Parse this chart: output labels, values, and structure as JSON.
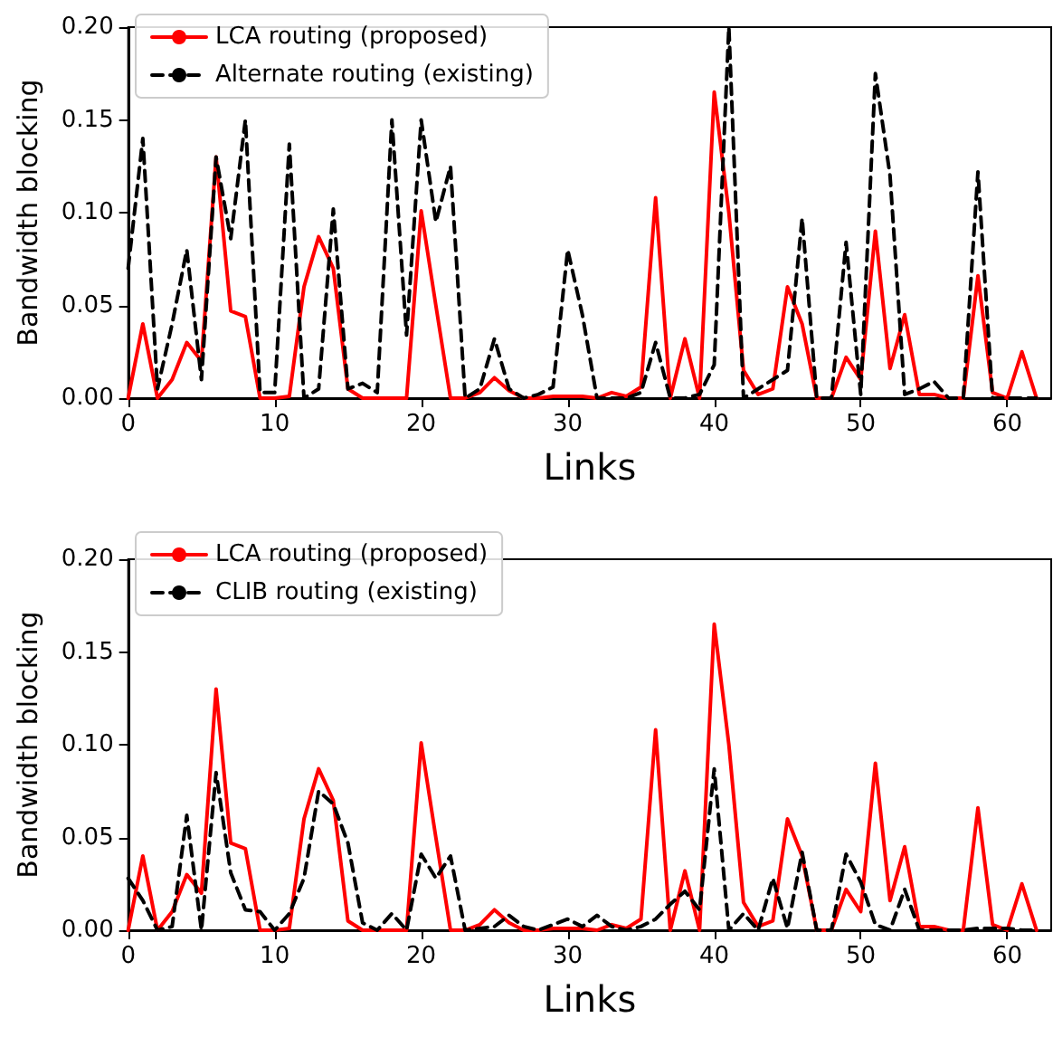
{
  "chart_data": [
    {
      "type": "line",
      "xlabel": "Links",
      "ylabel": "Bandwidth blocking",
      "legend": "top left",
      "marker": "none",
      "x": [
        0,
        1,
        2,
        3,
        4,
        5,
        6,
        7,
        8,
        9,
        10,
        11,
        12,
        13,
        14,
        15,
        16,
        17,
        18,
        19,
        20,
        21,
        22,
        23,
        24,
        25,
        26,
        27,
        28,
        29,
        30,
        31,
        32,
        33,
        34,
        35,
        36,
        37,
        38,
        39,
        40,
        41,
        42,
        43,
        44,
        45,
        46,
        47,
        48,
        49,
        50,
        51,
        52,
        53,
        54,
        55,
        56,
        57,
        58,
        59,
        60,
        61,
        62
      ],
      "xlim": [
        0,
        63
      ],
      "xticks": [
        0,
        10,
        20,
        30,
        40,
        50,
        60
      ],
      "ylim": [
        0,
        0.2
      ],
      "yticks": [
        {
          "value": 0,
          "label": "0.00"
        },
        {
          "value": 0.05,
          "label": "0.05"
        },
        {
          "value": 0.1,
          "label": "0.10"
        },
        {
          "value": 0.15,
          "label": "0.15"
        },
        {
          "value": 0.2,
          "label": "0.20"
        }
      ],
      "series": [
        {
          "name": "LCA routing (proposed)",
          "color": "#ff0000",
          "line_style": "solid",
          "values": [
            0,
            0.04,
            0,
            0.01,
            0.03,
            0.02,
            0.13,
            0.047,
            0.044,
            0,
            0,
            0.001,
            0.06,
            0.087,
            0.07,
            0.005,
            0,
            0,
            0,
            0,
            0.101,
            0.05,
            0,
            0,
            0.003,
            0.011,
            0.004,
            0,
            0,
            0.001,
            0.001,
            0.001,
            0,
            0.003,
            0.001,
            0.006,
            0.108,
            0,
            0.032,
            0,
            0.165,
            0.1,
            0.015,
            0.002,
            0.005,
            0.06,
            0.04,
            0,
            0,
            0.022,
            0.01,
            0.09,
            0.016,
            0.045,
            0.002,
            0.002,
            0,
            0,
            0.066,
            0.003,
            0,
            0.025,
            0
          ]
        },
        {
          "name": "Alternate routing (existing)",
          "color": "#000000",
          "line_style": "dashed",
          "values": [
            0.07,
            0.14,
            0.005,
            0.04,
            0.08,
            0.01,
            0.13,
            0.086,
            0.15,
            0.003,
            0.003,
            0.137,
            0,
            0.005,
            0.102,
            0.005,
            0.008,
            0.003,
            0.15,
            0.034,
            0.15,
            0.095,
            0.125,
            0,
            0.005,
            0.032,
            0.005,
            0,
            0.002,
            0.006,
            0.08,
            0.045,
            0,
            0,
            0,
            0.003,
            0.03,
            0,
            0,
            0.002,
            0.018,
            0.2,
            0,
            0.005,
            0.01,
            0.015,
            0.097,
            0,
            0,
            0.084,
            0.002,
            0.175,
            0.12,
            0.002,
            0.005,
            0.009,
            0,
            0,
            0.122,
            0,
            0,
            0,
            0
          ]
        }
      ]
    },
    {
      "type": "line",
      "xlabel": "Links",
      "ylabel": "Bandwidth blocking",
      "legend": "top left",
      "marker": "none",
      "x": [
        0,
        1,
        2,
        3,
        4,
        5,
        6,
        7,
        8,
        9,
        10,
        11,
        12,
        13,
        14,
        15,
        16,
        17,
        18,
        19,
        20,
        21,
        22,
        23,
        24,
        25,
        26,
        27,
        28,
        29,
        30,
        31,
        32,
        33,
        34,
        35,
        36,
        37,
        38,
        39,
        40,
        41,
        42,
        43,
        44,
        45,
        46,
        47,
        48,
        49,
        50,
        51,
        52,
        53,
        54,
        55,
        56,
        57,
        58,
        59,
        60,
        61,
        62
      ],
      "xlim": [
        0,
        63
      ],
      "xticks": [
        0,
        10,
        20,
        30,
        40,
        50,
        60
      ],
      "ylim": [
        0,
        0.2
      ],
      "yticks": [
        {
          "value": 0,
          "label": "0.00"
        },
        {
          "value": 0.05,
          "label": "0.05"
        },
        {
          "value": 0.1,
          "label": "0.10"
        },
        {
          "value": 0.15,
          "label": "0.15"
        },
        {
          "value": 0.2,
          "label": "0.20"
        }
      ],
      "series": [
        {
          "name": "LCA routing (proposed)",
          "color": "#ff0000",
          "line_style": "solid",
          "values": [
            0,
            0.04,
            0,
            0.01,
            0.03,
            0.02,
            0.13,
            0.047,
            0.044,
            0,
            0,
            0.001,
            0.06,
            0.087,
            0.07,
            0.005,
            0,
            0,
            0,
            0,
            0.101,
            0.05,
            0,
            0,
            0.003,
            0.011,
            0.004,
            0,
            0,
            0.001,
            0.001,
            0.001,
            0,
            0.003,
            0.001,
            0.006,
            0.108,
            0,
            0.032,
            0,
            0.165,
            0.1,
            0.015,
            0.002,
            0.005,
            0.06,
            0.04,
            0,
            0,
            0.022,
            0.01,
            0.09,
            0.016,
            0.045,
            0.002,
            0.002,
            0,
            0,
            0.066,
            0.003,
            0,
            0.025,
            0
          ]
        },
        {
          "name": "CLIB routing (existing)",
          "color": "#000000",
          "line_style": "dashed",
          "values": [
            0.028,
            0.016,
            0,
            0.002,
            0.062,
            0,
            0.085,
            0.031,
            0.011,
            0.01,
            0,
            0.009,
            0.028,
            0.075,
            0.068,
            0.047,
            0.004,
            0,
            0.009,
            0,
            0.041,
            0.028,
            0.04,
            0,
            0.001,
            0.002,
            0.008,
            0.002,
            0,
            0.003,
            0.006,
            0.002,
            0.008,
            0.002,
            0,
            0.002,
            0.006,
            0.014,
            0.021,
            0.011,
            0.087,
            0,
            0.009,
            0,
            0.028,
            0.001,
            0.042,
            0,
            0,
            0.041,
            0.026,
            0.003,
            0,
            0.022,
            0,
            0,
            0,
            0,
            0.001,
            0.001,
            0.001,
            0,
            0
          ]
        }
      ]
    }
  ]
}
